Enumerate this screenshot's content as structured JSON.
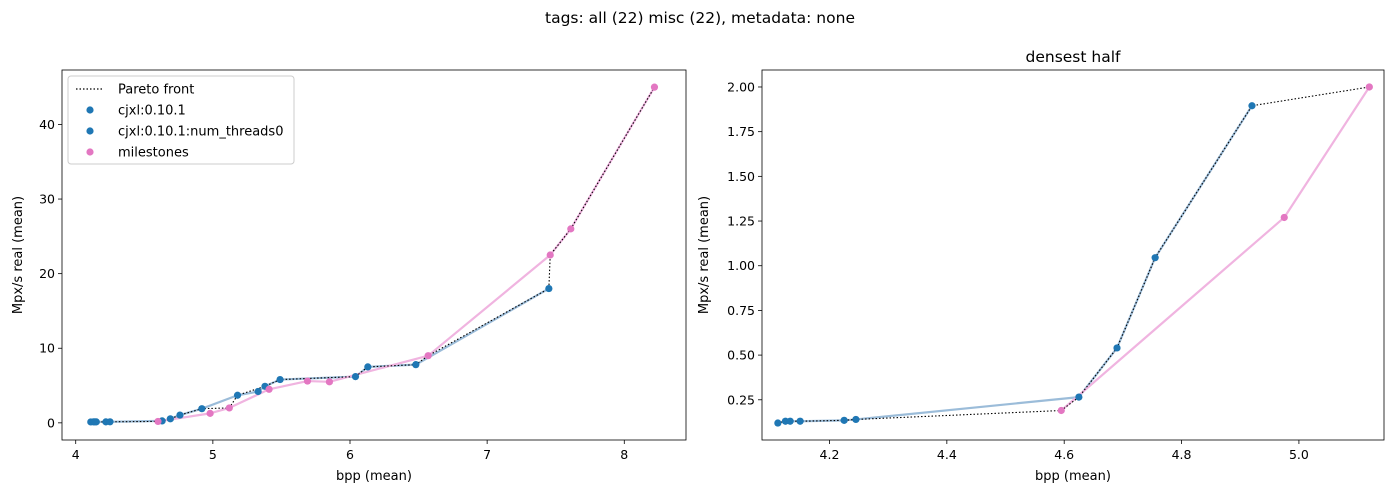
{
  "figure": {
    "suptitle": "tags: all (22) misc (22), metadata: none"
  },
  "colors": {
    "cjxl": "#1f77b4",
    "cjxl_line": "#9bbcd9",
    "milestones": "#e377c2",
    "milestones_line": "#f0b4e0",
    "pareto": "#000000"
  },
  "chart_data": [
    {
      "type": "scatter",
      "title": "",
      "xlabel": "bpp (mean)",
      "ylabel": "Mpx/s real (mean)",
      "xlim": [
        3.9,
        8.45
      ],
      "ylim": [
        -2.3,
        47.3
      ],
      "xticks": [
        4,
        5,
        6,
        7,
        8
      ],
      "yticks": [
        0,
        10,
        20,
        30,
        40
      ],
      "legend": {
        "placement": "upper-left",
        "entries": [
          {
            "label": "Pareto front",
            "kind": "dotted-line"
          },
          {
            "label": "cjxl:0.10.1",
            "kind": "marker",
            "series": "cjxl"
          },
          {
            "label": "cjxl:0.10.1:num_threads0",
            "kind": "marker",
            "series": "cjxl"
          },
          {
            "label": "milestones",
            "kind": "marker",
            "series": "milestones"
          }
        ]
      },
      "series": [
        {
          "name": "cjxl:0.10.1",
          "color_key": "cjxl",
          "points": [
            [
              4.11,
              0.12
            ],
            [
              4.13,
              0.13
            ],
            [
              4.14,
              0.13
            ],
            [
              4.15,
              0.13
            ],
            [
              4.22,
              0.13
            ],
            [
              4.25,
              0.14
            ],
            [
              4.63,
              0.26
            ],
            [
              4.69,
              0.54
            ],
            [
              4.76,
              1.04
            ],
            [
              4.92,
              1.9
            ],
            [
              5.18,
              3.7
            ],
            [
              5.33,
              4.2
            ],
            [
              5.38,
              4.9
            ],
            [
              5.49,
              5.8
            ],
            [
              6.04,
              6.2
            ],
            [
              6.13,
              7.5
            ],
            [
              6.48,
              7.8
            ],
            [
              7.45,
              18.0
            ]
          ]
        },
        {
          "name": "milestones",
          "color_key": "milestones",
          "points": [
            [
              4.6,
              0.19
            ],
            [
              4.98,
              1.27
            ],
            [
              5.12,
              2.0
            ],
            [
              5.41,
              4.5
            ],
            [
              5.69,
              5.6
            ],
            [
              5.85,
              5.5
            ],
            [
              6.57,
              9.0
            ],
            [
              7.46,
              22.5
            ],
            [
              7.61,
              26.0
            ],
            [
              8.22,
              45.0
            ]
          ]
        }
      ],
      "pareto": [
        [
          4.11,
          0.12
        ],
        [
          4.13,
          0.13
        ],
        [
          4.15,
          0.13
        ],
        [
          4.22,
          0.13
        ],
        [
          4.25,
          0.14
        ],
        [
          4.6,
          0.19
        ],
        [
          4.63,
          0.26
        ],
        [
          4.69,
          0.54
        ],
        [
          4.76,
          1.04
        ],
        [
          4.92,
          1.9
        ],
        [
          5.12,
          2.0
        ],
        [
          5.18,
          3.7
        ],
        [
          5.38,
          4.9
        ],
        [
          5.49,
          5.8
        ],
        [
          6.04,
          6.2
        ],
        [
          6.13,
          7.5
        ],
        [
          6.48,
          7.8
        ],
        [
          6.57,
          9.0
        ],
        [
          7.45,
          18.0
        ],
        [
          7.46,
          22.5
        ],
        [
          7.61,
          26.0
        ],
        [
          8.22,
          45.0
        ]
      ]
    },
    {
      "type": "scatter",
      "title": "densest half",
      "xlabel": "bpp (mean)",
      "ylabel": "Mpx/s real (mean)",
      "xlim": [
        4.085,
        5.145
      ],
      "ylim": [
        0.025,
        2.095
      ],
      "xticks": [
        4.2,
        4.4,
        4.6,
        4.8,
        5.0
      ],
      "yticks": [
        0.25,
        0.5,
        0.75,
        1.0,
        1.25,
        1.5,
        1.75,
        2.0
      ],
      "ytick_labels": [
        "0.25",
        "0.50",
        "0.75",
        "1.00",
        "1.25",
        "1.50",
        "1.75",
        "2.00"
      ],
      "xtick_labels": [
        "4.2",
        "4.4",
        "4.6",
        "4.8",
        "5.0"
      ],
      "series": [
        {
          "name": "cjxl:0.10.1",
          "color_key": "cjxl",
          "points": [
            [
              4.112,
              0.12
            ],
            [
              4.125,
              0.13
            ],
            [
              4.133,
              0.13
            ],
            [
              4.15,
              0.13
            ],
            [
              4.225,
              0.135
            ],
            [
              4.245,
              0.14
            ],
            [
              4.625,
              0.265
            ],
            [
              4.69,
              0.54
            ],
            [
              4.755,
              1.045
            ],
            [
              4.92,
              1.895
            ]
          ]
        },
        {
          "name": "milestones",
          "color_key": "milestones",
          "points": [
            [
              4.595,
              0.19
            ],
            [
              4.975,
              1.27
            ],
            [
              5.12,
              2.0
            ]
          ]
        }
      ],
      "pareto": [
        [
          4.112,
          0.12
        ],
        [
          4.125,
          0.13
        ],
        [
          4.15,
          0.13
        ],
        [
          4.225,
          0.135
        ],
        [
          4.245,
          0.14
        ],
        [
          4.595,
          0.19
        ],
        [
          4.625,
          0.265
        ],
        [
          4.69,
          0.54
        ],
        [
          4.755,
          1.045
        ],
        [
          4.92,
          1.895
        ],
        [
          5.12,
          2.0
        ]
      ]
    }
  ]
}
